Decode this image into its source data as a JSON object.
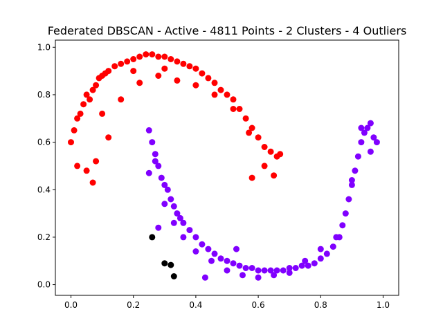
{
  "chart_data": {
    "type": "scatter",
    "title": "Federated DBSCAN - Active - 4811 Points - 2 Clusters - 4 Outliers",
    "xlabel": "",
    "ylabel": "",
    "xlim": [
      -0.05,
      1.05
    ],
    "ylim": [
      -0.045,
      1.03
    ],
    "x_ticks": [
      "0.0",
      "0.2",
      "0.4",
      "0.6",
      "0.8",
      "1.0"
    ],
    "y_ticks": [
      "0.0",
      "0.2",
      "0.4",
      "0.6",
      "0.8",
      "1.0"
    ],
    "grid": false,
    "colors": {
      "cluster_0": "#ff0000",
      "cluster_1": "#8000ff",
      "outliers": "#000000"
    },
    "series": [
      {
        "color": "#ff0000",
        "x": [
          0.0,
          0.01,
          0.02,
          0.03,
          0.04,
          0.05,
          0.06,
          0.07,
          0.08,
          0.09,
          0.1,
          0.11,
          0.12,
          0.14,
          0.16,
          0.18,
          0.2,
          0.22,
          0.24,
          0.26,
          0.28,
          0.3,
          0.32,
          0.34,
          0.36,
          0.38,
          0.4,
          0.42,
          0.44,
          0.46,
          0.48,
          0.5,
          0.52,
          0.54,
          0.56,
          0.58,
          0.6,
          0.62,
          0.64,
          0.66,
          0.67,
          0.02,
          0.05,
          0.08,
          0.12,
          0.16,
          0.22,
          0.28,
          0.34,
          0.4,
          0.46,
          0.52,
          0.57,
          0.62,
          0.65,
          0.07,
          0.58,
          0.1,
          0.2,
          0.3
        ],
        "y": [
          0.6,
          0.65,
          0.7,
          0.72,
          0.76,
          0.8,
          0.78,
          0.82,
          0.84,
          0.87,
          0.88,
          0.89,
          0.9,
          0.92,
          0.93,
          0.94,
          0.95,
          0.96,
          0.97,
          0.97,
          0.96,
          0.96,
          0.95,
          0.94,
          0.93,
          0.92,
          0.91,
          0.89,
          0.87,
          0.85,
          0.82,
          0.8,
          0.78,
          0.74,
          0.7,
          0.66,
          0.62,
          0.58,
          0.56,
          0.54,
          0.55,
          0.5,
          0.48,
          0.52,
          0.62,
          0.78,
          0.85,
          0.88,
          0.86,
          0.84,
          0.8,
          0.74,
          0.64,
          0.5,
          0.46,
          0.43,
          0.45,
          0.72,
          0.9,
          0.91
        ]
      },
      {
        "color": "#8000ff",
        "x": [
          0.25,
          0.26,
          0.27,
          0.28,
          0.29,
          0.3,
          0.31,
          0.32,
          0.33,
          0.34,
          0.35,
          0.36,
          0.38,
          0.4,
          0.42,
          0.44,
          0.46,
          0.48,
          0.5,
          0.52,
          0.54,
          0.56,
          0.58,
          0.6,
          0.62,
          0.64,
          0.66,
          0.68,
          0.7,
          0.72,
          0.74,
          0.76,
          0.78,
          0.8,
          0.82,
          0.84,
          0.86,
          0.87,
          0.88,
          0.89,
          0.9,
          0.91,
          0.92,
          0.93,
          0.94,
          0.95,
          0.96,
          0.97,
          0.27,
          0.3,
          0.33,
          0.36,
          0.4,
          0.45,
          0.5,
          0.55,
          0.6,
          0.65,
          0.7,
          0.75,
          0.8,
          0.85,
          0.9,
          0.93,
          0.96,
          0.25,
          0.28,
          0.98,
          0.53,
          0.43
        ],
        "y": [
          0.65,
          0.6,
          0.55,
          0.5,
          0.45,
          0.42,
          0.4,
          0.36,
          0.33,
          0.3,
          0.28,
          0.26,
          0.23,
          0.2,
          0.17,
          0.15,
          0.13,
          0.11,
          0.1,
          0.09,
          0.08,
          0.07,
          0.07,
          0.06,
          0.06,
          0.06,
          0.06,
          0.06,
          0.07,
          0.07,
          0.08,
          0.08,
          0.09,
          0.11,
          0.13,
          0.16,
          0.2,
          0.25,
          0.3,
          0.36,
          0.42,
          0.48,
          0.54,
          0.6,
          0.64,
          0.66,
          0.68,
          0.62,
          0.52,
          0.34,
          0.26,
          0.2,
          0.14,
          0.1,
          0.06,
          0.04,
          0.03,
          0.04,
          0.05,
          0.1,
          0.15,
          0.2,
          0.44,
          0.66,
          0.56,
          0.47,
          0.24,
          0.6,
          0.15,
          0.03
        ]
      },
      {
        "color": "#000000",
        "x": [
          0.26,
          0.3,
          0.32,
          0.33
        ],
        "y": [
          0.2,
          0.09,
          0.083,
          0.035
        ]
      }
    ]
  }
}
